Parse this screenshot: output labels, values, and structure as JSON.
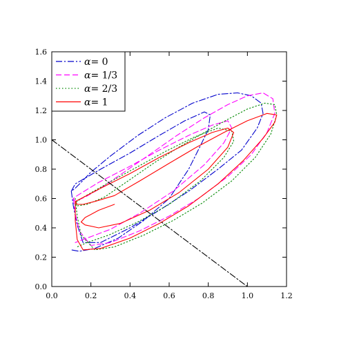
{
  "chart_data": {
    "type": "line",
    "xlim": [
      0.0,
      1.2
    ],
    "ylim": [
      0.0,
      1.6
    ],
    "x_ticks": [
      "0.0",
      "0.2",
      "0.4",
      "0.6",
      "0.8",
      "1.0",
      "1.2"
    ],
    "y_ticks": [
      "0.0",
      "0.2",
      "0.4",
      "0.6",
      "0.8",
      "1.0",
      "1.2",
      "1.4",
      "1.6"
    ],
    "legend": {
      "placement": "top-left",
      "symbol": "α",
      "eq": "="
    },
    "series": [
      {
        "name": "0",
        "color": "#0000cc",
        "dash": "dashdot",
        "x": [
          0.1,
          0.11,
          0.13,
          0.16,
          0.25,
          0.4,
          0.55,
          0.7,
          0.85,
          0.97,
          1.05,
          1.08,
          1.07,
          1.02,
          0.95,
          0.85,
          0.72,
          0.58,
          0.44,
          0.3,
          0.2,
          0.15,
          0.12,
          0.1,
          0.12,
          0.25,
          0.4,
          0.55,
          0.68,
          0.78,
          0.81,
          0.8,
          0.76,
          0.7,
          0.6,
          0.47,
          0.34,
          0.22,
          0.14,
          0.1
        ],
        "y": [
          0.65,
          0.55,
          0.42,
          0.3,
          0.3,
          0.4,
          0.52,
          0.65,
          0.8,
          0.93,
          1.08,
          1.18,
          1.25,
          1.3,
          1.32,
          1.31,
          1.25,
          1.15,
          1.03,
          0.89,
          0.78,
          0.71,
          0.67,
          0.65,
          0.7,
          0.8,
          0.91,
          1.03,
          1.13,
          1.19,
          1.17,
          1.07,
          0.96,
          0.8,
          0.6,
          0.45,
          0.33,
          0.26,
          0.24,
          0.25
        ]
      },
      {
        "name": "1/3",
        "color": "#ff00ff",
        "dash": "dash",
        "x": [
          0.11,
          0.12,
          0.14,
          0.2,
          0.3,
          0.45,
          0.6,
          0.75,
          0.9,
          1.02,
          1.1,
          1.14,
          1.13,
          1.08,
          1.0,
          0.9,
          0.78,
          0.64,
          0.5,
          0.37,
          0.25,
          0.17,
          0.12,
          0.11,
          0.13,
          0.24,
          0.4,
          0.55,
          0.7,
          0.82,
          0.9,
          0.92,
          0.88,
          0.78,
          0.62,
          0.45,
          0.3,
          0.18,
          0.12
        ],
        "y": [
          0.6,
          0.5,
          0.38,
          0.28,
          0.3,
          0.38,
          0.48,
          0.6,
          0.75,
          0.9,
          1.05,
          1.18,
          1.28,
          1.32,
          1.3,
          1.24,
          1.15,
          1.03,
          0.9,
          0.78,
          0.67,
          0.61,
          0.58,
          0.6,
          0.62,
          0.71,
          0.82,
          0.93,
          1.03,
          1.1,
          1.13,
          1.08,
          0.98,
          0.83,
          0.65,
          0.5,
          0.39,
          0.33,
          0.3
        ]
      },
      {
        "name": "2/3",
        "color": "#008800",
        "dash": "dot",
        "x": [
          0.12,
          0.13,
          0.15,
          0.22,
          0.32,
          0.47,
          0.62,
          0.77,
          0.92,
          1.04,
          1.12,
          1.15,
          1.14,
          1.09,
          1.0,
          0.9,
          0.78,
          0.65,
          0.52,
          0.39,
          0.27,
          0.18,
          0.13,
          0.12,
          0.15,
          0.28,
          0.43,
          0.58,
          0.73,
          0.85,
          0.92,
          0.93,
          0.88,
          0.76,
          0.6,
          0.44,
          0.29,
          0.18,
          0.13
        ],
        "y": [
          0.6,
          0.48,
          0.35,
          0.25,
          0.27,
          0.35,
          0.45,
          0.57,
          0.72,
          0.88,
          1.04,
          1.17,
          1.24,
          1.25,
          1.21,
          1.14,
          1.05,
          0.95,
          0.84,
          0.72,
          0.61,
          0.56,
          0.55,
          0.57,
          0.6,
          0.7,
          0.81,
          0.92,
          1.02,
          1.08,
          1.06,
          0.99,
          0.88,
          0.72,
          0.56,
          0.44,
          0.35,
          0.3,
          0.27
        ]
      },
      {
        "name": "1",
        "color": "#ff0000",
        "dash": "solid",
        "x": [
          0.12,
          0.12,
          0.13,
          0.16,
          0.25,
          0.4,
          0.55,
          0.7,
          0.85,
          0.98,
          1.08,
          1.14,
          1.15,
          1.1,
          1.0,
          0.88,
          0.74,
          0.6,
          0.45,
          0.32,
          0.22,
          0.16,
          0.13,
          0.12,
          0.15,
          0.25,
          0.4,
          0.55,
          0.7,
          0.82,
          0.9,
          0.93,
          0.9,
          0.8,
          0.65,
          0.5,
          0.35,
          0.24,
          0.17,
          0.15,
          0.17,
          0.24,
          0.32
        ],
        "y": [
          0.58,
          0.45,
          0.32,
          0.25,
          0.26,
          0.33,
          0.43,
          0.55,
          0.7,
          0.86,
          1.01,
          1.12,
          1.17,
          1.18,
          1.13,
          1.05,
          0.95,
          0.84,
          0.72,
          0.62,
          0.58,
          0.56,
          0.56,
          0.58,
          0.6,
          0.67,
          0.77,
          0.88,
          0.98,
          1.05,
          1.08,
          1.05,
          0.95,
          0.8,
          0.64,
          0.52,
          0.43,
          0.4,
          0.42,
          0.44,
          0.47,
          0.52,
          0.56
        ]
      },
      {
        "name": "",
        "color": "#000000",
        "dash": "dashdot",
        "x": [
          0.0,
          1.0
        ],
        "y": [
          1.0,
          0.0
        ]
      }
    ],
    "legend_entries": [
      "0",
      "1/3",
      "2/3",
      "1"
    ]
  }
}
